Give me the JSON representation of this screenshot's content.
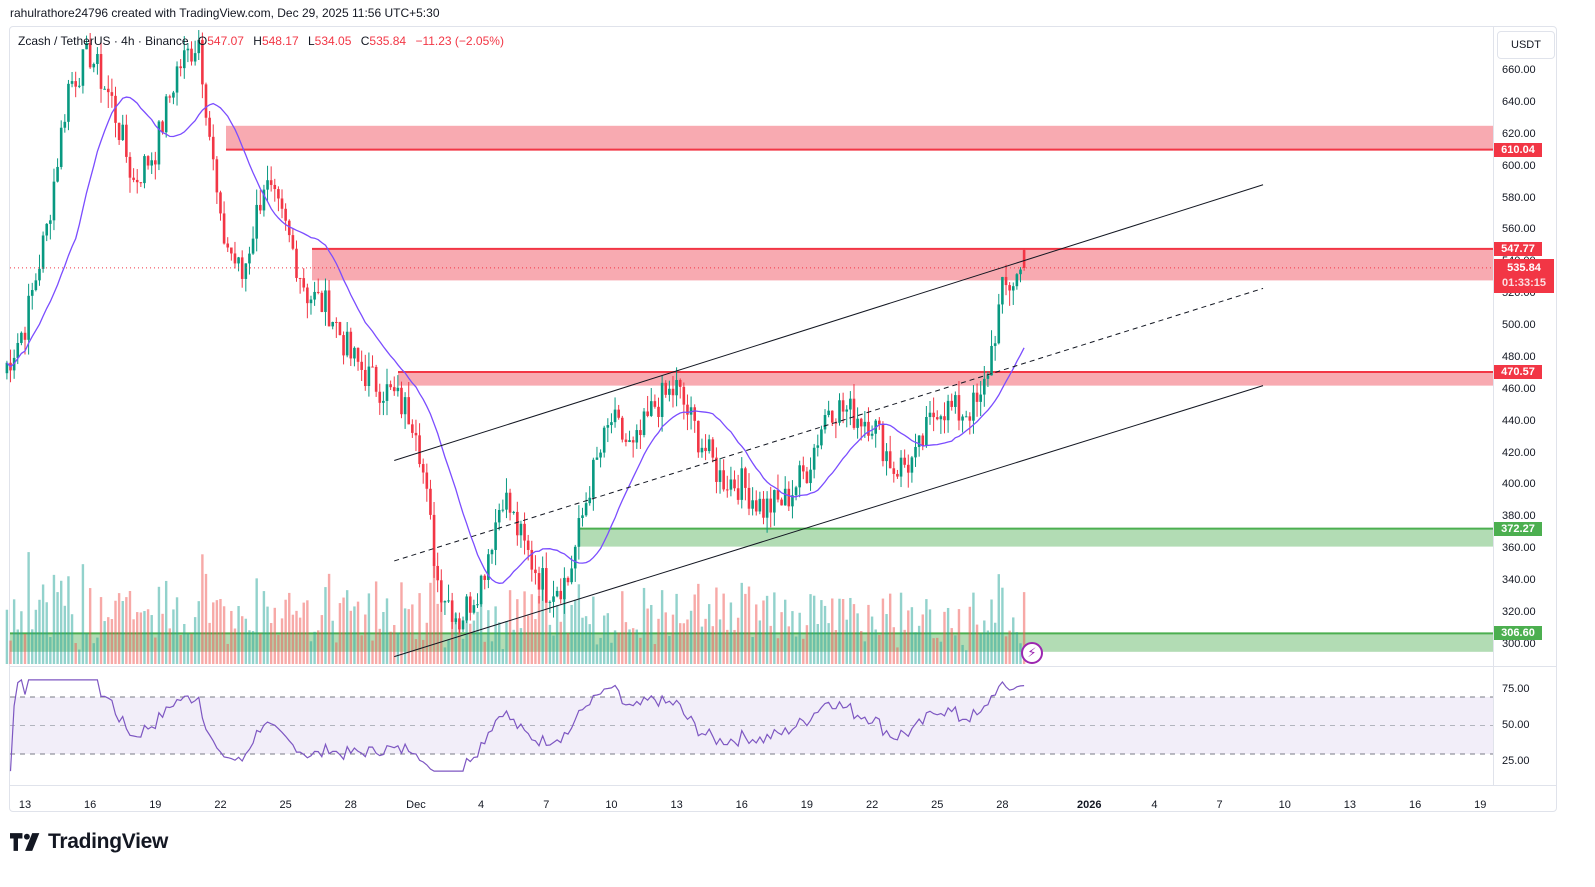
{
  "credit": "rahulrathore24796 created with TradingView.com, Dec 29, 2025 11:56 UTC+5:30",
  "legend": {
    "symbol": "Zcash / TetherUS · 4h · Binance",
    "open_label": "O",
    "open": "547.07",
    "high_label": "H",
    "high": "548.17",
    "low_label": "L",
    "low": "534.05",
    "close_label": "C",
    "close": "535.84",
    "change": "−11.23 (−2.05%)"
  },
  "currency": "USDT",
  "price_axis": [
    "660.00",
    "640.00",
    "620.00",
    "600.00",
    "580.00",
    "560.00",
    "540.00",
    "520.00",
    "500.00",
    "480.00",
    "460.00",
    "440.00",
    "420.00",
    "400.00",
    "380.00",
    "360.00",
    "340.00",
    "320.00",
    "300.00"
  ],
  "price_tags": [
    {
      "value": "610.04",
      "color": "red"
    },
    {
      "value": "547.77",
      "color": "red"
    },
    {
      "value": "470.57",
      "color": "red"
    },
    {
      "value": "372.27",
      "color": "green"
    },
    {
      "value": "306.60",
      "color": "green"
    }
  ],
  "last_price": {
    "value": "535.84",
    "timer": "01:33:15"
  },
  "rsi_axis": [
    "75.00",
    "50.00",
    "25.00"
  ],
  "time_axis": [
    {
      "label": "13"
    },
    {
      "label": "16"
    },
    {
      "label": "19"
    },
    {
      "label": "22"
    },
    {
      "label": "25"
    },
    {
      "label": "28"
    },
    {
      "label": "Dec"
    },
    {
      "label": "4"
    },
    {
      "label": "7"
    },
    {
      "label": "10"
    },
    {
      "label": "13"
    },
    {
      "label": "16"
    },
    {
      "label": "19"
    },
    {
      "label": "22"
    },
    {
      "label": "25"
    },
    {
      "label": "28"
    },
    {
      "label": "2026",
      "bold": true
    },
    {
      "label": "4"
    },
    {
      "label": "7"
    },
    {
      "label": "10"
    },
    {
      "label": "13"
    },
    {
      "label": "16"
    },
    {
      "label": "19"
    }
  ],
  "brand": "TradingView",
  "colors": {
    "up": "#089981",
    "down": "#f23645",
    "ma": "#7b4dff",
    "rsi": "#7e57c2",
    "resistance_fill": "#f7a1a8",
    "support_fill": "#a5d6a7",
    "support_line": "#4caf50",
    "resistance_line": "#f23645"
  },
  "chart_data": {
    "type": "candlestick",
    "title": "Zcash / TetherUS · 4h · Binance",
    "xlabel": "",
    "ylabel": "USDT",
    "ylim": [
      292,
      672
    ],
    "x_range": [
      "2025-11-13",
      "2026-01-19"
    ],
    "grid": false,
    "ohlc_last": {
      "open": 547.07,
      "high": 548.17,
      "low": 534.05,
      "close": 535.84,
      "change": -11.23,
      "change_pct": -2.05
    },
    "price_path_daily": {
      "dates": [
        "Nov 12",
        "Nov 13",
        "Nov 14",
        "Nov 15",
        "Nov 16",
        "Nov 17",
        "Nov 18",
        "Nov 19",
        "Nov 20",
        "Nov 21",
        "Nov 22",
        "Nov 23",
        "Nov 24",
        "Nov 25",
        "Nov 26",
        "Nov 27",
        "Nov 28",
        "Nov 29",
        "Nov 30",
        "Dec 1",
        "Dec 2",
        "Dec 3",
        "Dec 4",
        "Dec 5",
        "Dec 6",
        "Dec 7",
        "Dec 8",
        "Dec 9",
        "Dec 10",
        "Dec 11",
        "Dec 12",
        "Dec 13",
        "Dec 14",
        "Dec 15",
        "Dec 16",
        "Dec 17",
        "Dec 18",
        "Dec 19",
        "Dec 20",
        "Dec 21",
        "Dec 22",
        "Dec 23",
        "Dec 24",
        "Dec 25",
        "Dec 26",
        "Dec 27",
        "Dec 28",
        "Dec 29"
      ],
      "close": [
        470,
        500,
        560,
        650,
        670,
        640,
        590,
        610,
        660,
        680,
        560,
        530,
        590,
        560,
        520,
        510,
        480,
        465,
        455,
        440,
        340,
        315,
        340,
        395,
        360,
        335,
        340,
        400,
        440,
        420,
        450,
        460,
        430,
        405,
        400,
        385,
        390,
        410,
        450,
        445,
        440,
        410,
        415,
        450,
        445,
        450,
        520,
        536
      ]
    },
    "ma_line": {
      "label": "MA",
      "color": "#7b4dff"
    },
    "horizontal_zones": [
      {
        "type": "resistance",
        "top": 625,
        "bottom": 610.04,
        "label": "610.04"
      },
      {
        "type": "resistance",
        "top": 547.77,
        "bottom": 528,
        "label": "547.77"
      },
      {
        "type": "resistance",
        "top": 470.57,
        "bottom": 462,
        "label": "470.57"
      },
      {
        "type": "support",
        "top": 372.27,
        "bottom": 361,
        "label": "372.27"
      },
      {
        "type": "support",
        "top": 306.6,
        "bottom": 295,
        "label": "306.60"
      }
    ],
    "channel": {
      "upper": [
        [
          "Nov 30",
          415
        ],
        [
          "Jan 9",
          588
        ]
      ],
      "middle": [
        [
          "Nov 30",
          352
        ],
        [
          "Jan 9",
          523
        ]
      ],
      "lower": [
        [
          "Nov 30",
          292
        ],
        [
          "Jan 9",
          462
        ]
      ]
    },
    "rsi": {
      "levels": [
        70,
        50,
        30
      ],
      "axis_labels": [
        75,
        50,
        25
      ],
      "overbought_end": true,
      "oversold_dip": "Dec 2-3"
    },
    "volume": {
      "up_color": "#26a69a",
      "down_color": "#ef5350"
    }
  }
}
